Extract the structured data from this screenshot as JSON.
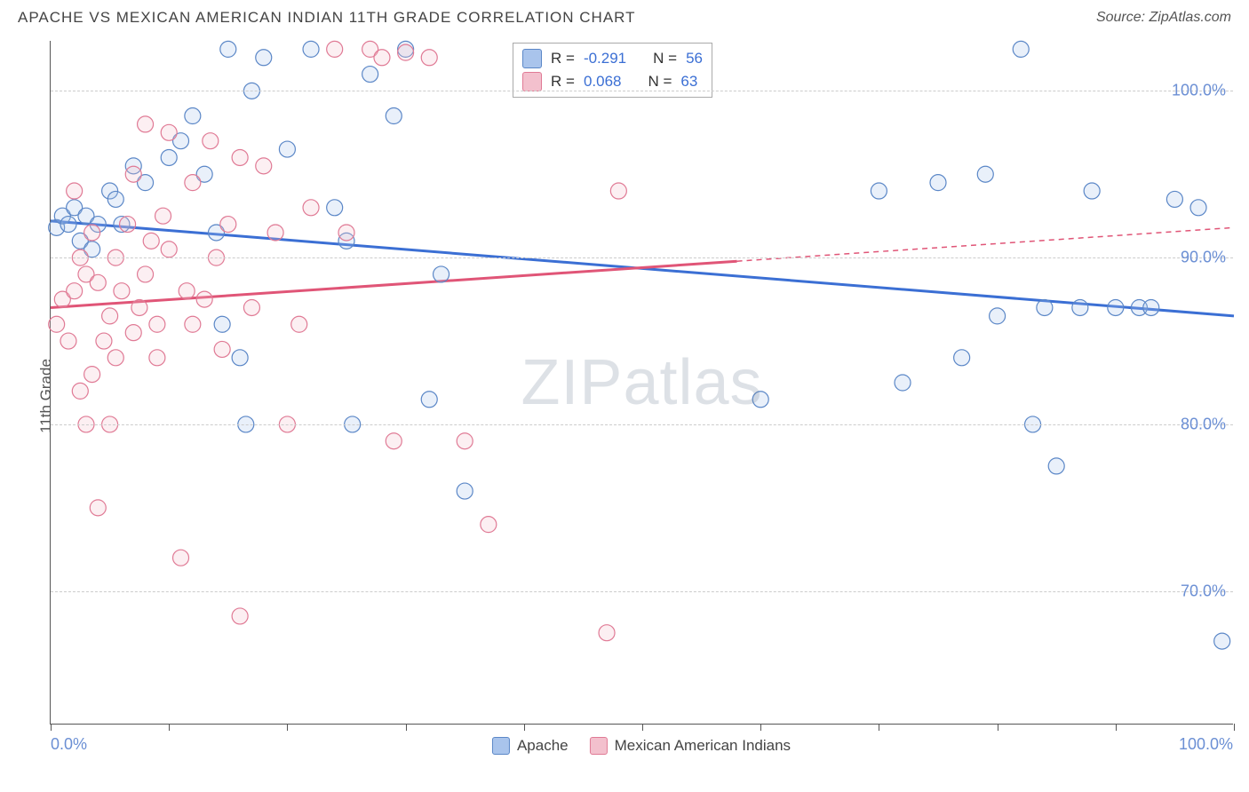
{
  "title": "APACHE VS MEXICAN AMERICAN INDIAN 11TH GRADE CORRELATION CHART",
  "source": "Source: ZipAtlas.com",
  "watermark": {
    "part1": "ZIP",
    "part2": "atlas"
  },
  "y_axis_label": "11th Grade",
  "chart": {
    "type": "scatter",
    "xlim": [
      0,
      100
    ],
    "ylim": [
      62,
      103
    ],
    "y_ticks": [
      70,
      80,
      90,
      100
    ],
    "y_tick_labels": [
      "70.0%",
      "80.0%",
      "90.0%",
      "100.0%"
    ],
    "y_tick_color": "#6b8fd4",
    "x_ticks": [
      0,
      10,
      20,
      30,
      40,
      50,
      60,
      70,
      80,
      90,
      100
    ],
    "x_axis_labels": {
      "left": "0.0%",
      "right": "100.0%",
      "color": "#6b8fd4"
    },
    "grid_color": "#cccccc",
    "background_color": "#ffffff",
    "marker_radius": 9,
    "marker_stroke_width": 1.2,
    "marker_fill_opacity": 0.25,
    "trendline_width": 3,
    "series": [
      {
        "name": "Apache",
        "color_fill": "#a9c4ec",
        "color_stroke": "#5b87c7",
        "trend_color": "#3b6fd4",
        "trend": {
          "x1": 0,
          "y1": 92.2,
          "x2": 100,
          "y2": 86.5,
          "solid_until": 100
        },
        "points": [
          [
            0.5,
            91.8
          ],
          [
            1,
            92.5
          ],
          [
            1.5,
            92.0
          ],
          [
            2,
            93.0
          ],
          [
            2.5,
            91.0
          ],
          [
            3,
            92.5
          ],
          [
            3.5,
            90.5
          ],
          [
            4,
            92.0
          ],
          [
            5,
            94.0
          ],
          [
            5.5,
            93.5
          ],
          [
            6,
            92.0
          ],
          [
            7,
            95.5
          ],
          [
            8,
            94.5
          ],
          [
            10,
            96.0
          ],
          [
            11,
            97.0
          ],
          [
            12,
            98.5
          ],
          [
            13,
            95.0
          ],
          [
            14,
            91.5
          ],
          [
            14.5,
            86.0
          ],
          [
            15,
            102.5
          ],
          [
            16,
            84.0
          ],
          [
            16.5,
            80.0
          ],
          [
            17,
            100.0
          ],
          [
            18,
            102.0
          ],
          [
            20,
            96.5
          ],
          [
            22,
            102.5
          ],
          [
            24,
            93.0
          ],
          [
            25,
            91.0
          ],
          [
            25.5,
            80.0
          ],
          [
            27,
            101.0
          ],
          [
            29,
            98.5
          ],
          [
            30,
            102.5
          ],
          [
            32,
            81.5
          ],
          [
            33,
            89.0
          ],
          [
            35,
            76.0
          ],
          [
            60,
            81.5
          ],
          [
            70,
            94.0
          ],
          [
            72,
            82.5
          ],
          [
            75,
            94.5
          ],
          [
            77,
            84.0
          ],
          [
            79,
            95.0
          ],
          [
            80,
            86.5
          ],
          [
            82,
            102.5
          ],
          [
            83,
            80.0
          ],
          [
            84,
            87.0
          ],
          [
            85,
            77.5
          ],
          [
            87,
            87.0
          ],
          [
            88,
            94.0
          ],
          [
            90,
            87.0
          ],
          [
            92,
            87.0
          ],
          [
            93,
            87.0
          ],
          [
            95,
            93.5
          ],
          [
            97,
            93.0
          ],
          [
            99,
            67.0
          ]
        ]
      },
      {
        "name": "Mexican American Indians",
        "color_fill": "#f3c0cd",
        "color_stroke": "#e07a95",
        "trend_color": "#e05577",
        "trend": {
          "x1": 0,
          "y1": 87.0,
          "x2": 100,
          "y2": 91.8,
          "solid_until": 58
        },
        "points": [
          [
            0.5,
            86.0
          ],
          [
            1,
            87.5
          ],
          [
            1.5,
            85.0
          ],
          [
            2,
            88.0
          ],
          [
            2.0,
            94.0
          ],
          [
            2.5,
            82.0
          ],
          [
            2.5,
            90.0
          ],
          [
            3,
            89.0
          ],
          [
            3,
            80.0
          ],
          [
            3.5,
            91.5
          ],
          [
            3.5,
            83.0
          ],
          [
            4,
            88.5
          ],
          [
            4,
            75.0
          ],
          [
            4.5,
            85.0
          ],
          [
            5,
            86.5
          ],
          [
            5,
            80.0
          ],
          [
            5.5,
            90.0
          ],
          [
            5.5,
            84.0
          ],
          [
            6,
            88.0
          ],
          [
            6.5,
            92.0
          ],
          [
            7,
            85.5
          ],
          [
            7,
            95.0
          ],
          [
            7.5,
            87.0
          ],
          [
            8,
            89.0
          ],
          [
            8,
            98.0
          ],
          [
            8.5,
            91.0
          ],
          [
            9,
            86.0
          ],
          [
            9,
            84.0
          ],
          [
            9.5,
            92.5
          ],
          [
            10,
            90.5
          ],
          [
            10,
            97.5
          ],
          [
            11,
            72.0
          ],
          [
            11.5,
            88.0
          ],
          [
            12,
            94.5
          ],
          [
            12,
            86.0
          ],
          [
            13,
            87.5
          ],
          [
            13.5,
            97.0
          ],
          [
            14,
            90.0
          ],
          [
            14.5,
            84.5
          ],
          [
            15,
            92.0
          ],
          [
            16,
            96.0
          ],
          [
            16,
            68.5
          ],
          [
            17,
            87.0
          ],
          [
            18,
            95.5
          ],
          [
            19,
            91.5
          ],
          [
            20,
            80.0
          ],
          [
            21,
            86.0
          ],
          [
            22,
            93.0
          ],
          [
            24,
            102.5
          ],
          [
            25,
            91.5
          ],
          [
            27,
            102.5
          ],
          [
            28,
            102.0
          ],
          [
            29,
            79.0
          ],
          [
            30,
            102.3
          ],
          [
            32,
            102.0
          ],
          [
            35,
            79.0
          ],
          [
            37,
            74.0
          ],
          [
            47,
            67.5
          ],
          [
            48,
            94.0
          ]
        ]
      }
    ],
    "stat_legend": [
      {
        "swatch": "#a9c4ec",
        "stroke": "#5b87c7",
        "r": "-0.291",
        "n": "56"
      },
      {
        "swatch": "#f3c0cd",
        "stroke": "#e07a95",
        "r": "0.068",
        "n": "63"
      }
    ],
    "bottom_legend": [
      {
        "swatch": "#a9c4ec",
        "stroke": "#5b87c7",
        "label": "Apache"
      },
      {
        "swatch": "#f3c0cd",
        "stroke": "#e07a95",
        "label": "Mexican American Indians"
      }
    ]
  }
}
